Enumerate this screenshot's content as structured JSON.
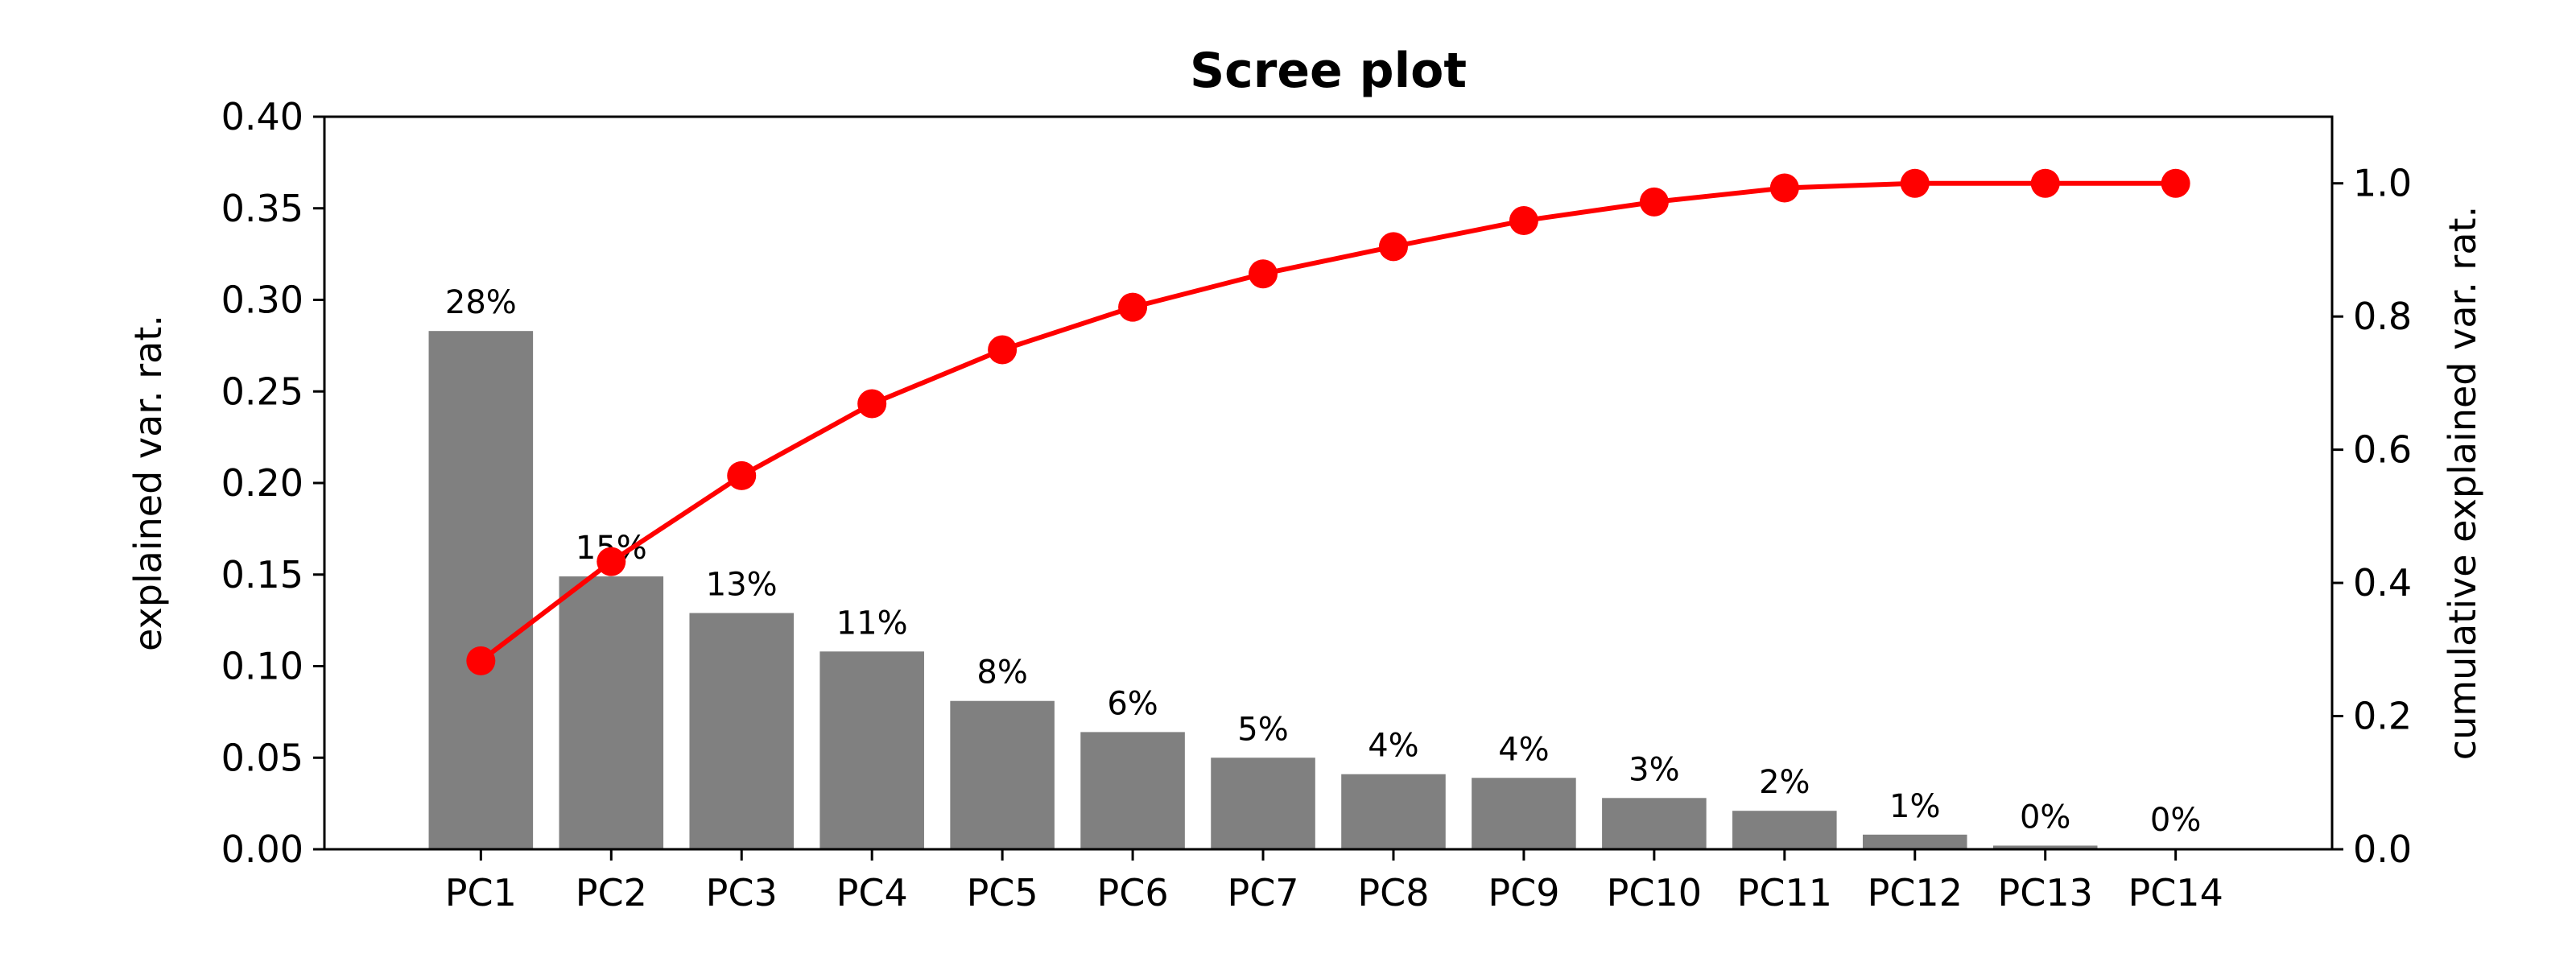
{
  "chart_data": {
    "type": "bar",
    "title": "Scree plot",
    "categories": [
      "PC1",
      "PC2",
      "PC3",
      "PC4",
      "PC5",
      "PC6",
      "PC7",
      "PC8",
      "PC9",
      "PC10",
      "PC11",
      "PC12",
      "PC13",
      "PC14"
    ],
    "ylabel": "explained var. rat.",
    "y2label": "cumulative explained var. rat.",
    "ylim": [
      0,
      0.4
    ],
    "y2lim": [
      0,
      1.1
    ],
    "yticks": [
      "0.00",
      "0.05",
      "0.10",
      "0.15",
      "0.20",
      "0.25",
      "0.30",
      "0.35",
      "0.40"
    ],
    "y2ticks": [
      "0.0",
      "0.2",
      "0.4",
      "0.6",
      "0.8",
      "1.0"
    ],
    "grid": false,
    "series": [
      {
        "type": "bar",
        "color": "#808080",
        "values": [
          0.283,
          0.149,
          0.129,
          0.108,
          0.081,
          0.064,
          0.05,
          0.041,
          0.039,
          0.028,
          0.021,
          0.008,
          0.002,
          0.0005
        ]
      },
      {
        "type": "line",
        "axis": "right",
        "color": "#ff0000",
        "marker": "circle",
        "values": [
          0.283,
          0.432,
          0.561,
          0.669,
          0.75,
          0.814,
          0.864,
          0.905,
          0.944,
          0.972,
          0.993,
          1.0,
          1.0,
          1.0
        ]
      }
    ],
    "data_labels": [
      "28%",
      "15%",
      "13%",
      "11%",
      "8%",
      "6%",
      "5%",
      "4%",
      "4%",
      "3%",
      "2%",
      "1%",
      "0%",
      "0%"
    ]
  }
}
